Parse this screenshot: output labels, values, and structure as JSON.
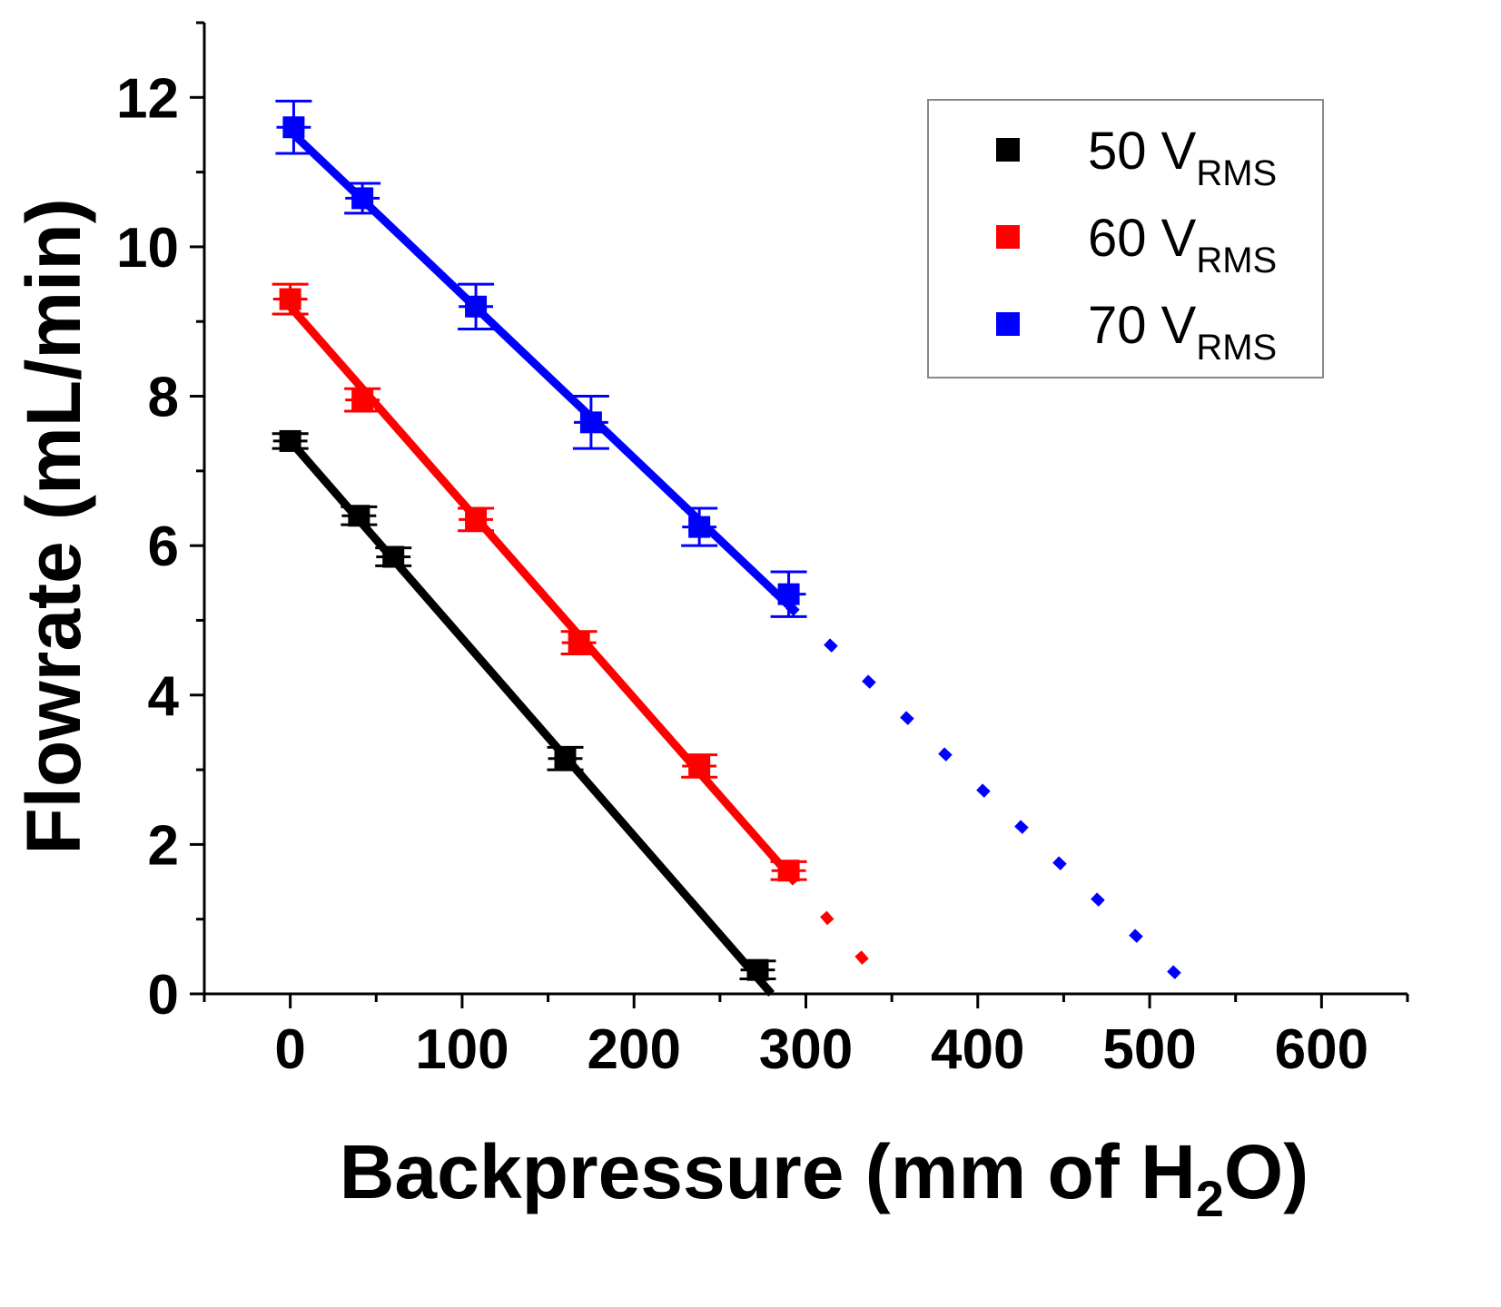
{
  "chart_data": {
    "type": "scatter",
    "title": "",
    "xlabel": "Backpressure (mm of H2O)",
    "xlabel_parts": {
      "main": "Backpressure (mm of H",
      "sub": "2",
      "tail": "O)"
    },
    "ylabel": "Flowrate (mL/min)",
    "xlim": [
      -50,
      650
    ],
    "ylim": [
      0,
      13
    ],
    "xticks": [
      0,
      100,
      200,
      300,
      400,
      500,
      600
    ],
    "yticks": [
      0,
      2,
      4,
      6,
      8,
      10,
      12
    ],
    "legend_position": "top-right",
    "series": [
      {
        "name": "50 VRMS",
        "label_main": "50 V",
        "label_sub": "RMS",
        "color": "#000000",
        "x": [
          0,
          40,
          60,
          160,
          272
        ],
        "y": [
          7.4,
          6.4,
          5.85,
          3.15,
          0.32
        ],
        "yerr": [
          0.1,
          0.12,
          0.12,
          0.15,
          0.12
        ],
        "xerr": [
          10,
          10,
          10,
          10,
          10
        ],
        "fit": {
          "x0": 0,
          "y0": 7.4,
          "x1": 280,
          "y1": 0,
          "extrapolate_to": null
        }
      },
      {
        "name": "60 VRMS",
        "label_main": "60 V",
        "label_sub": "RMS",
        "color": "#ff0000",
        "x": [
          0,
          42,
          108,
          168,
          238,
          290
        ],
        "y": [
          9.3,
          7.95,
          6.35,
          4.7,
          3.05,
          1.65
        ],
        "yerr": [
          0.2,
          0.15,
          0.15,
          0.15,
          0.15,
          0.12
        ],
        "xerr": [
          10,
          10,
          10,
          10,
          10,
          10
        ],
        "fit": {
          "x0": 0,
          "y0": 9.2,
          "x1": 290,
          "y1": 1.6,
          "extrapolate_to": 335
        }
      },
      {
        "name": "70 VRMS",
        "label_main": "70 V",
        "label_sub": "RMS",
        "color": "#0000ff",
        "x": [
          2,
          42,
          108,
          175,
          238,
          290
        ],
        "y": [
          11.6,
          10.65,
          9.2,
          7.65,
          6.25,
          5.35
        ],
        "yerr": [
          0.35,
          0.2,
          0.3,
          0.35,
          0.25,
          0.3
        ],
        "xerr": [
          10,
          10,
          10,
          10,
          10,
          10
        ],
        "fit": {
          "x0": 0,
          "y0": 11.55,
          "x1": 290,
          "y1": 5.2,
          "extrapolate_to": 522
        }
      }
    ]
  }
}
